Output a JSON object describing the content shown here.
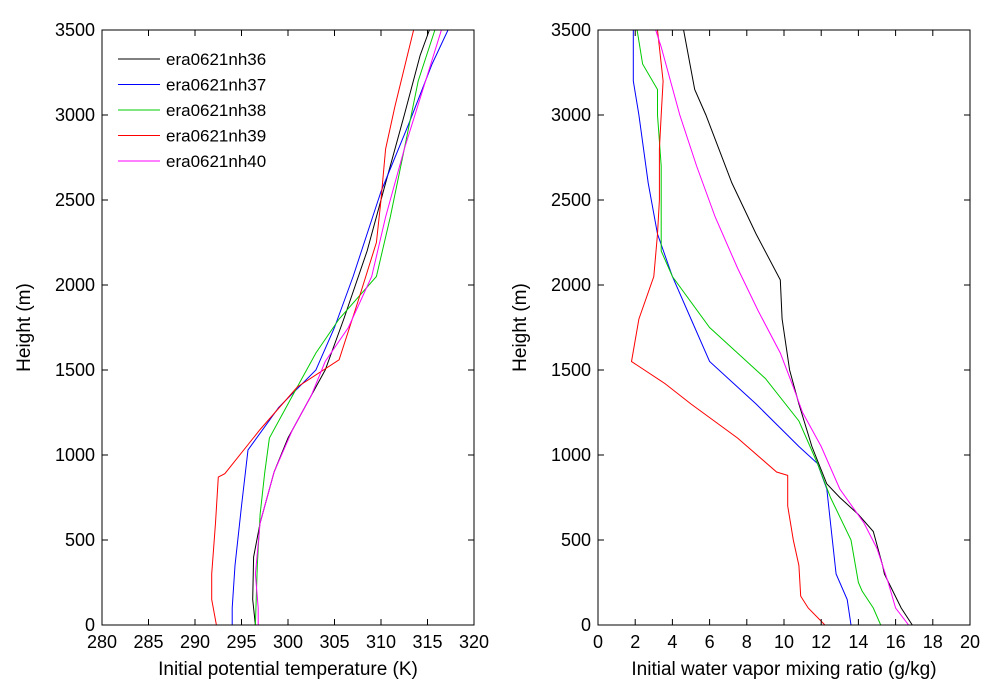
{
  "chart_data": [
    {
      "type": "line",
      "xlabel": "Initial potential temperature (K)",
      "ylabel": "Height (m)",
      "xlim": [
        280,
        320
      ],
      "ylim": [
        0,
        3500
      ],
      "xticks": [
        "280",
        "285",
        "290",
        "295",
        "300",
        "305",
        "310",
        "315",
        "320"
      ],
      "yticks": [
        "0",
        "500",
        "1000",
        "1500",
        "2000",
        "2500",
        "3000",
        "3500"
      ],
      "legend": "top-left",
      "grid": false,
      "series": [
        {
          "name": "era0621nh36",
          "color": "#000000",
          "points": [
            [
              296.5,
              0
            ],
            [
              296.2,
              150
            ],
            [
              296.3,
              400
            ],
            [
              297,
              600
            ],
            [
              298.5,
              900
            ],
            [
              300,
              1100
            ],
            [
              302,
              1300
            ],
            [
              304,
              1500
            ],
            [
              306,
              1800
            ],
            [
              308.5,
              2200
            ],
            [
              310.5,
              2600
            ],
            [
              312.5,
              3000
            ],
            [
              314.2,
              3350
            ],
            [
              315.2,
              3500
            ]
          ]
        },
        {
          "name": "era0621nh37",
          "color": "#0000ff",
          "points": [
            [
              294,
              0
            ],
            [
              294,
              100
            ],
            [
              294.3,
              350
            ],
            [
              295,
              700
            ],
            [
              295.7,
              1030
            ],
            [
              299,
              1280
            ],
            [
              303,
              1500
            ],
            [
              305,
              1750
            ],
            [
              307,
              2050
            ],
            [
              310,
              2550
            ],
            [
              313,
              2950
            ],
            [
              315.5,
              3300
            ],
            [
              317.2,
              3500
            ]
          ]
        },
        {
          "name": "era0621nh38",
          "color": "#00cc00",
          "points": [
            [
              296.5,
              0
            ],
            [
              296.7,
              350
            ],
            [
              297,
              650
            ],
            [
              297.5,
              900
            ],
            [
              298,
              1100
            ],
            [
              300.5,
              1350
            ],
            [
              303,
              1600
            ],
            [
              305.5,
              1800
            ],
            [
              309.5,
              2050
            ],
            [
              311,
              2400
            ],
            [
              312.5,
              2800
            ],
            [
              314,
              3200
            ],
            [
              315.8,
              3500
            ]
          ]
        },
        {
          "name": "era0621nh39",
          "color": "#ff0000",
          "points": [
            [
              292.3,
              0
            ],
            [
              291.8,
              150
            ],
            [
              291.8,
              300
            ],
            [
              292.2,
              600
            ],
            [
              292.5,
              870
            ],
            [
              293.2,
              890
            ],
            [
              297,
              1150
            ],
            [
              301,
              1400
            ],
            [
              305.5,
              1560
            ],
            [
              307.5,
              1900
            ],
            [
              309.5,
              2250
            ],
            [
              310,
              2500
            ],
            [
              310.5,
              2800
            ],
            [
              311.5,
              3050
            ],
            [
              313.5,
              3500
            ]
          ]
        },
        {
          "name": "era0621nh40",
          "color": "#ff00ff",
          "points": [
            [
              296.8,
              0
            ],
            [
              296.8,
              100
            ],
            [
              296.5,
              300
            ],
            [
              297,
              600
            ],
            [
              298.5,
              900
            ],
            [
              300.5,
              1150
            ],
            [
              302.5,
              1350
            ],
            [
              304,
              1550
            ],
            [
              306.5,
              1750
            ],
            [
              309,
              2050
            ],
            [
              310.5,
              2400
            ],
            [
              312.5,
              2800
            ],
            [
              314.5,
              3150
            ],
            [
              316.5,
              3500
            ]
          ]
        }
      ]
    },
    {
      "type": "line",
      "xlabel": "Initial water vapor mixing ratio (g/kg)",
      "ylabel": "Height (m)",
      "xlim": [
        0,
        20
      ],
      "ylim": [
        0,
        3500
      ],
      "xticks": [
        "0",
        "2",
        "4",
        "6",
        "8",
        "10",
        "12",
        "14",
        "16",
        "18",
        "20"
      ],
      "yticks": [
        "0",
        "500",
        "1000",
        "1500",
        "2000",
        "2500",
        "3000",
        "3500"
      ],
      "grid": false,
      "series": [
        {
          "name": "era0621nh36",
          "color": "#000000",
          "points": [
            [
              16.9,
              0
            ],
            [
              16.3,
              100
            ],
            [
              15.4,
              300
            ],
            [
              15.3,
              350
            ],
            [
              14.8,
              550
            ],
            [
              14,
              650
            ],
            [
              13,
              750
            ],
            [
              12.3,
              830
            ],
            [
              11.5,
              1050
            ],
            [
              10.8,
              1300
            ],
            [
              10.3,
              1500
            ],
            [
              9.9,
              1800
            ],
            [
              9.8,
              2030
            ],
            [
              8.5,
              2300
            ],
            [
              7.2,
              2600
            ],
            [
              5.8,
              3000
            ],
            [
              5.2,
              3150
            ],
            [
              4.6,
              3500
            ]
          ]
        },
        {
          "name": "era0621nh37",
          "color": "#0000ff",
          "points": [
            [
              13.6,
              0
            ],
            [
              13.4,
              150
            ],
            [
              12.8,
              300
            ],
            [
              12.5,
              600
            ],
            [
              12.3,
              800
            ],
            [
              11.8,
              950
            ],
            [
              10.8,
              1050
            ],
            [
              8.5,
              1300
            ],
            [
              6,
              1550
            ],
            [
              5,
              1800
            ],
            [
              4,
              2050
            ],
            [
              3.2,
              2300
            ],
            [
              2.7,
              2600
            ],
            [
              2.2,
              3000
            ],
            [
              1.9,
              3200
            ],
            [
              1.9,
              3500
            ]
          ]
        },
        {
          "name": "era0621nh38",
          "color": "#00cc00",
          "points": [
            [
              15.2,
              0
            ],
            [
              14.8,
              100
            ],
            [
              14.2,
              200
            ],
            [
              14,
              250
            ],
            [
              13.6,
              500
            ],
            [
              12.5,
              750
            ],
            [
              11.8,
              950
            ],
            [
              10.8,
              1200
            ],
            [
              9,
              1450
            ],
            [
              7.5,
              1600
            ],
            [
              6,
              1750
            ],
            [
              4,
              2050
            ],
            [
              3.4,
              2200
            ],
            [
              3.4,
              2500
            ],
            [
              3.4,
              2700
            ],
            [
              3.2,
              3000
            ],
            [
              3.2,
              3150
            ],
            [
              2.4,
              3300
            ],
            [
              2.1,
              3500
            ]
          ]
        },
        {
          "name": "era0621nh39",
          "color": "#ff0000",
          "points": [
            [
              12.2,
              0
            ],
            [
              11.3,
              100
            ],
            [
              10.9,
              170
            ],
            [
              10.8,
              350
            ],
            [
              10.5,
              500
            ],
            [
              10.2,
              700
            ],
            [
              10.2,
              880
            ],
            [
              9.6,
              900
            ],
            [
              7.5,
              1100
            ],
            [
              5,
              1300
            ],
            [
              3.6,
              1420
            ],
            [
              1.8,
              1550
            ],
            [
              2.2,
              1800
            ],
            [
              3,
              2050
            ],
            [
              3.2,
              2300
            ],
            [
              3.3,
              2500
            ],
            [
              3.3,
              2800
            ],
            [
              3.4,
              3000
            ],
            [
              3.5,
              3200
            ],
            [
              3.2,
              3500
            ]
          ]
        },
        {
          "name": "era0621nh40",
          "color": "#ff00ff",
          "points": [
            [
              16.7,
              0
            ],
            [
              16,
              100
            ],
            [
              15.6,
              250
            ],
            [
              15,
              450
            ],
            [
              14.3,
              600
            ],
            [
              13,
              800
            ],
            [
              12,
              1050
            ],
            [
              11,
              1250
            ],
            [
              10.5,
              1400
            ],
            [
              9.8,
              1600
            ],
            [
              8.6,
              1850
            ],
            [
              7.5,
              2100
            ],
            [
              6.3,
              2400
            ],
            [
              5.3,
              2700
            ],
            [
              4.4,
              3000
            ],
            [
              3.4,
              3400
            ],
            [
              3.1,
              3500
            ]
          ]
        }
      ]
    }
  ]
}
